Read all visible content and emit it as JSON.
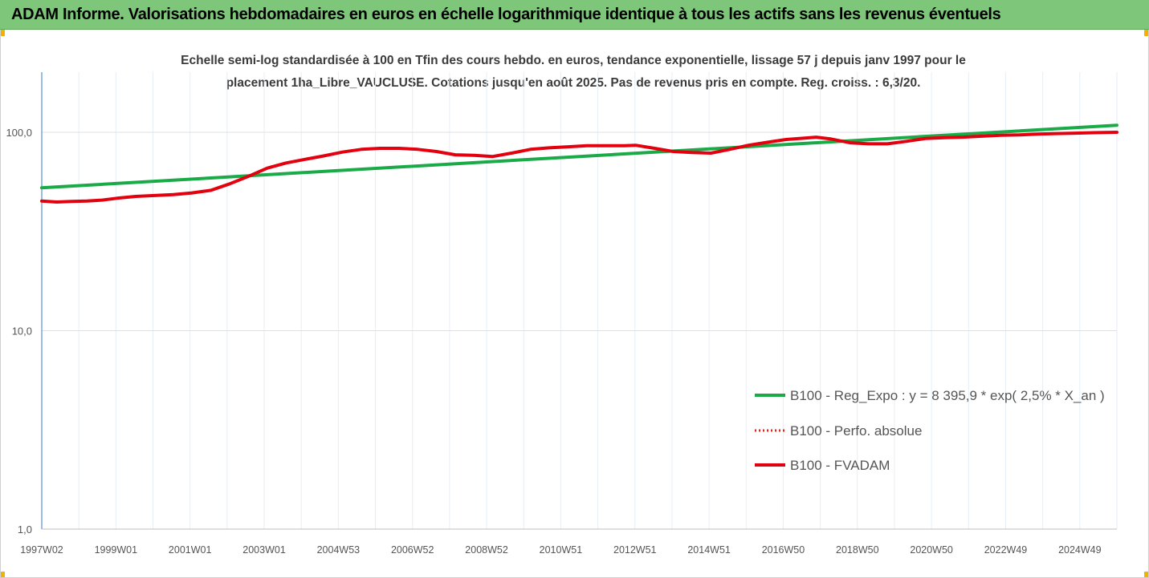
{
  "header": {
    "title": "ADAM Informe. Valorisations hebdomadaires en euros en échelle logarithmique identique à tous les actifs sans les revenus éventuels"
  },
  "colors": {
    "header_bg": "#7dc67a",
    "regression": "#1aab48",
    "perf": "#e3281c",
    "fvadam": "#e3000f",
    "grid": "#e6eef6",
    "axis": "#3a78c4"
  },
  "chart_data": {
    "type": "line",
    "title_line1": "Echelle semi-log standardisée à 100 en Tfin des cours hebdo. en euros, tendance exponentielle, lissage 57 j depuis janv 1997 pour le",
    "title_line2": "placement 1ha_Libre_VAUCLUSE. Cotations jusqu'en août 2025. Pas de revenus pris en compte. Reg. croiss. : 6,3/20.",
    "y_scale": "log",
    "ylim": [
      1,
      200
    ],
    "y_ticks": [
      1,
      10,
      100
    ],
    "y_tick_labels": [
      "1,0",
      "10,0",
      "100,0"
    ],
    "x_tick_labels": [
      "1997W02",
      "1999W01",
      "2001W01",
      "2003W01",
      "2004W53",
      "2006W52",
      "2008W52",
      "2010W51",
      "2012W51",
      "2014W51",
      "2016W50",
      "2018W50",
      "2020W50",
      "2022W49",
      "2024W49"
    ],
    "grid": true,
    "legend_position": "bottom-right",
    "series": [
      {
        "name": "B100 - Reg_Expo : y = 8 395,9 * exp( 2,5% *  X_an )",
        "style": "solid",
        "points": [
          [
            1997.0,
            52.5
          ],
          [
            2025.6,
            108.5
          ]
        ]
      },
      {
        "name": "B100 - Perfo. absolue",
        "style": "dotted",
        "points": []
      },
      {
        "name": "B100 - FVADAM",
        "style": "solid",
        "points": [
          [
            1997.0,
            45.0
          ],
          [
            1997.4,
            44.5
          ],
          [
            1997.8,
            44.8
          ],
          [
            1998.2,
            45.0
          ],
          [
            1998.6,
            45.5
          ],
          [
            1999.0,
            46.5
          ],
          [
            1999.5,
            47.5
          ],
          [
            2000.0,
            48.0
          ],
          [
            2000.5,
            48.5
          ],
          [
            2001.0,
            49.5
          ],
          [
            2001.5,
            51.0
          ],
          [
            2002.0,
            55.0
          ],
          [
            2002.5,
            60.0
          ],
          [
            2003.0,
            66.0
          ],
          [
            2003.5,
            70.0
          ],
          [
            2004.0,
            73.0
          ],
          [
            2004.5,
            76.0
          ],
          [
            2005.0,
            79.5
          ],
          [
            2005.5,
            82.0
          ],
          [
            2006.0,
            83.0
          ],
          [
            2006.5,
            83.0
          ],
          [
            2007.0,
            82.0
          ],
          [
            2007.5,
            80.0
          ],
          [
            2008.0,
            77.0
          ],
          [
            2008.5,
            76.5
          ],
          [
            2009.0,
            75.5
          ],
          [
            2009.5,
            78.5
          ],
          [
            2010.0,
            82.0
          ],
          [
            2010.5,
            83.5
          ],
          [
            2011.0,
            84.5
          ],
          [
            2011.5,
            85.5
          ],
          [
            2012.0,
            85.5
          ],
          [
            2012.5,
            85.5
          ],
          [
            2012.8,
            86.0
          ],
          [
            2013.3,
            83.0
          ],
          [
            2013.8,
            80.0
          ],
          [
            2014.3,
            79.0
          ],
          [
            2014.8,
            78.5
          ],
          [
            2015.3,
            82.0
          ],
          [
            2015.8,
            86.0
          ],
          [
            2016.3,
            89.0
          ],
          [
            2016.8,
            92.0
          ],
          [
            2017.3,
            93.5
          ],
          [
            2017.6,
            94.5
          ],
          [
            2018.0,
            92.5
          ],
          [
            2018.5,
            88.5
          ],
          [
            2019.0,
            87.5
          ],
          [
            2019.5,
            87.5
          ],
          [
            2020.0,
            90.0
          ],
          [
            2020.5,
            93.0
          ],
          [
            2021.0,
            94.0
          ],
          [
            2021.5,
            94.5
          ],
          [
            2022.0,
            95.5
          ],
          [
            2022.5,
            96.5
          ],
          [
            2023.0,
            97.0
          ],
          [
            2023.5,
            98.0
          ],
          [
            2024.0,
            98.5
          ],
          [
            2024.5,
            99.0
          ],
          [
            2025.0,
            99.5
          ],
          [
            2025.6,
            100.0
          ]
        ]
      }
    ]
  }
}
